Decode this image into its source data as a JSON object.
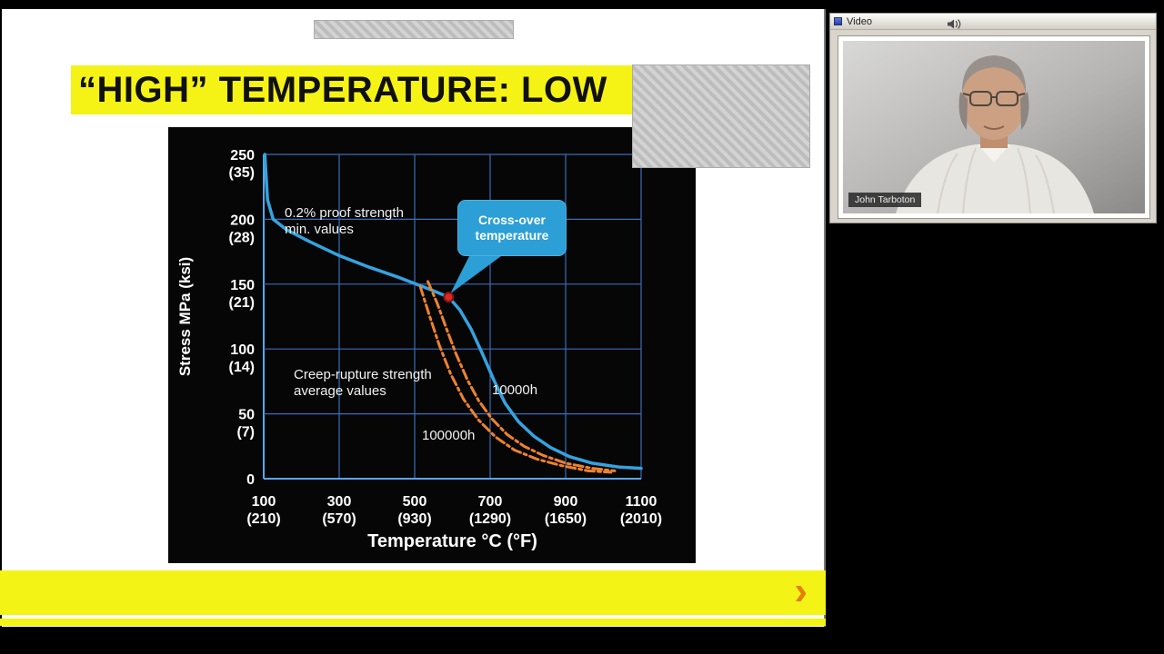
{
  "slide": {
    "title": "“HIGH” TEMPERATURE: LOW"
  },
  "footer": {
    "next_arrow": "›"
  },
  "video_panel": {
    "title": "Video",
    "name_tag": "John Tarboton",
    "icons": {
      "left": "window-icon",
      "right": "speaker-icon"
    }
  },
  "colors": {
    "highlight": "#f5f315",
    "footer_bar": "#f3f315",
    "callout": "#2b9fd6",
    "arrow": "#e67e00",
    "chart_bg": "#060606"
  },
  "chart_data": {
    "type": "line",
    "title": "",
    "xlabel": "Temperature °C (°F)",
    "ylabel": "Stress MPa (ksi)",
    "xlim": [
      100,
      1100
    ],
    "ylim": [
      0,
      250
    ],
    "grid": true,
    "grid_color": "#3a6db8",
    "axis_color": "#5aa5e8",
    "x_tick_values": [
      100,
      300,
      500,
      700,
      900,
      1100
    ],
    "x_ticks": [
      [
        "100",
        "(210)"
      ],
      [
        "300",
        "(570)"
      ],
      [
        "500",
        "(930)"
      ],
      [
        "700",
        "(1290)"
      ],
      [
        "900",
        "(1650)"
      ],
      [
        "1100",
        "(2010)"
      ]
    ],
    "y_tick_values": [
      0,
      50,
      100,
      150,
      200,
      250
    ],
    "y_ticks": [
      [
        "0",
        ""
      ],
      [
        "50",
        "(7)"
      ],
      [
        "100",
        "(14)"
      ],
      [
        "150",
        "(21)"
      ],
      [
        "200",
        "(28)"
      ],
      [
        "250",
        "(35)"
      ]
    ],
    "series": [
      {
        "name": "0.2% proof strength min. values",
        "color": "#35a3e0",
        "style": "solid",
        "width": 3.5,
        "points": [
          [
            103,
            250
          ],
          [
            110,
            215
          ],
          [
            125,
            200
          ],
          [
            160,
            192
          ],
          [
            220,
            183
          ],
          [
            300,
            172
          ],
          [
            380,
            163
          ],
          [
            460,
            155
          ],
          [
            540,
            146
          ],
          [
            590,
            140
          ],
          [
            620,
            130
          ],
          [
            650,
            115
          ],
          [
            680,
            96
          ],
          [
            710,
            76
          ],
          [
            740,
            58
          ],
          [
            775,
            44
          ],
          [
            815,
            33
          ],
          [
            860,
            24
          ],
          [
            910,
            17
          ],
          [
            970,
            12
          ],
          [
            1040,
            9
          ],
          [
            1100,
            8
          ]
        ]
      },
      {
        "name": "Creep-rupture strength 10000h",
        "color": "#ef8230",
        "style": "dashdot",
        "width": 3,
        "points": [
          [
            535,
            152
          ],
          [
            560,
            135
          ],
          [
            585,
            115
          ],
          [
            610,
            96
          ],
          [
            640,
            76
          ],
          [
            670,
            60
          ],
          [
            705,
            46
          ],
          [
            745,
            34
          ],
          [
            790,
            25
          ],
          [
            840,
            18
          ],
          [
            900,
            12
          ],
          [
            970,
            8
          ],
          [
            1030,
            6
          ]
        ]
      },
      {
        "name": "Creep-rupture strength 100000h",
        "color": "#ef8230",
        "style": "dashdot",
        "width": 3,
        "points": [
          [
            515,
            148
          ],
          [
            540,
            125
          ],
          [
            565,
            103
          ],
          [
            595,
            81
          ],
          [
            630,
            61
          ],
          [
            670,
            45
          ],
          [
            715,
            32
          ],
          [
            765,
            22
          ],
          [
            825,
            15
          ],
          [
            890,
            10
          ],
          [
            960,
            6
          ],
          [
            1020,
            5
          ]
        ]
      }
    ],
    "crossover": {
      "x": 590,
      "y": 140,
      "color": "#e02820",
      "label": "Cross-over\ntemperature"
    },
    "labels": {
      "proof": "0.2% proof strength\nmin. values",
      "creep": "Creep-rupture strength\naverage values",
      "h10k": "10000h",
      "h100k": "100000h"
    }
  }
}
